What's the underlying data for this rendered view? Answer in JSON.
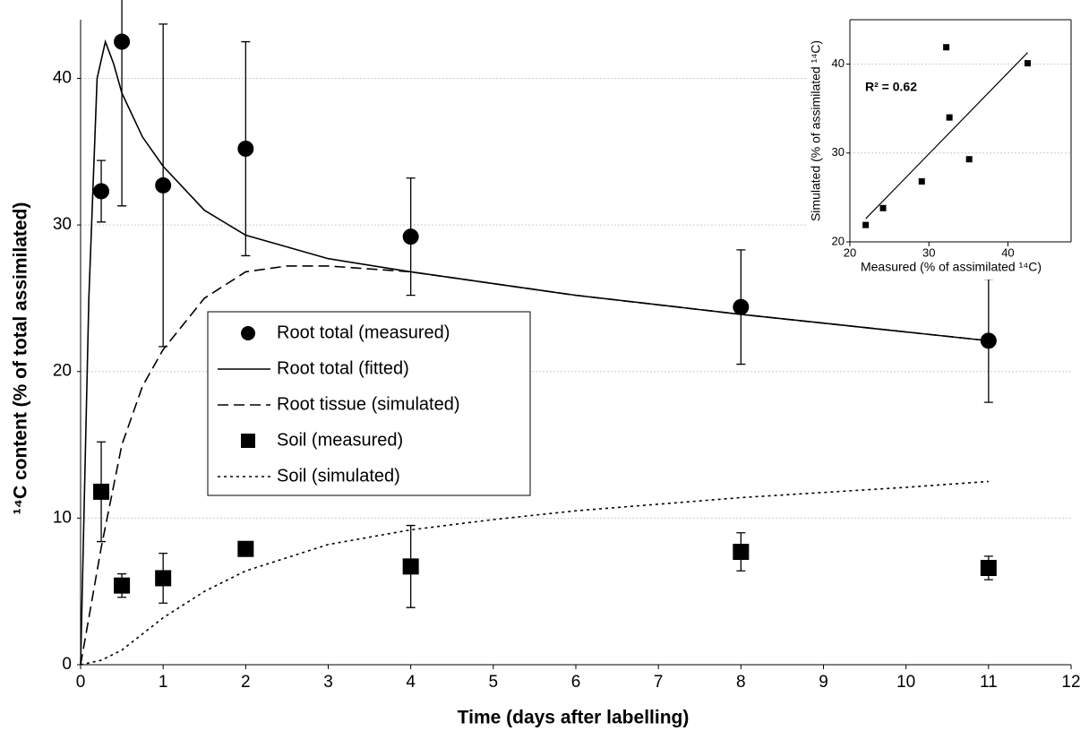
{
  "chart_data": [
    {
      "type": "line",
      "x_label": "Time (days after labelling)",
      "y_label": "¹⁴C content (% of total assimilated)",
      "xlim": [
        0,
        12
      ],
      "ylim": [
        0,
        44
      ],
      "xticks": [
        0,
        1,
        2,
        3,
        4,
        5,
        6,
        7,
        8,
        9,
        10,
        11,
        12
      ],
      "yticks": [
        0,
        10,
        20,
        30,
        40
      ],
      "grid": true,
      "series": [
        {
          "name": "Root total (measured)",
          "color": "#000000",
          "marker": "circle",
          "x": [
            0.25,
            0.5,
            1,
            2,
            4,
            8,
            11
          ],
          "values": [
            32.3,
            42.5,
            32.7,
            35.2,
            29.2,
            24.4,
            22.1
          ],
          "errors": [
            2.1,
            11.2,
            11,
            7.3,
            4,
            3.9,
            4.2
          ]
        },
        {
          "name": "Root total (fitted)",
          "color": "#000000",
          "dash": "solid",
          "x": [
            0,
            0.1,
            0.2,
            0.3,
            0.4,
            0.5,
            0.75,
            1,
            1.5,
            2,
            3,
            4,
            5,
            6,
            8,
            10,
            11
          ],
          "values": [
            0,
            25,
            40,
            42.5,
            41,
            39,
            36,
            34,
            31,
            29.3,
            27.7,
            26.8,
            26,
            25.2,
            23.9,
            22.7,
            22.1
          ]
        },
        {
          "name": "Root tissue (simulated)",
          "color": "#000000",
          "dash": "dashed",
          "x": [
            0,
            0.25,
            0.5,
            0.75,
            1,
            1.5,
            2,
            2.5,
            3,
            4,
            5,
            6,
            8,
            10,
            11
          ],
          "values": [
            0,
            8,
            15,
            19,
            21.5,
            25,
            26.8,
            27.2,
            27.2,
            26.8,
            26,
            25.2,
            23.9,
            22.7,
            22.1
          ]
        },
        {
          "name": "Soil (measured)",
          "color": "#000000",
          "marker": "square",
          "x": [
            0.25,
            0.5,
            1,
            2,
            4,
            8,
            11
          ],
          "values": [
            11.8,
            5.4,
            5.9,
            7.9,
            6.7,
            7.7,
            6.6
          ],
          "errors": [
            3.4,
            0.8,
            1.7,
            0.3,
            2.8,
            1.3,
            0.8
          ]
        },
        {
          "name": "Soil (simulated)",
          "color": "#000000",
          "dash": "dotted",
          "x": [
            0,
            0.25,
            0.5,
            1,
            1.5,
            2,
            3,
            4,
            5,
            6,
            8,
            10,
            11
          ],
          "values": [
            0,
            0.3,
            1,
            3.2,
            5,
            6.4,
            8.2,
            9.2,
            9.9,
            10.5,
            11.4,
            12.1,
            12.5
          ]
        }
      ]
    },
    {
      "type": "scatter",
      "x_label": "Measured (% of assimilated ¹⁴C)",
      "y_label": "Simulated (% of assimilated ¹⁴C)",
      "annotation": "R² = 0.62",
      "xlim": [
        20,
        48
      ],
      "ylim": [
        20,
        45
      ],
      "xticks": [
        20,
        30,
        40
      ],
      "yticks": [
        20,
        30,
        40
      ],
      "grid": true,
      "color": "#000000",
      "x": [
        22,
        24.2,
        29.1,
        35.1,
        32.6,
        32.2,
        42.5
      ],
      "values": [
        21.9,
        23.8,
        26.8,
        29.3,
        34,
        41.9,
        40.1
      ],
      "trendline": {
        "x": [
          22,
          42.5
        ],
        "values": [
          22.6,
          41.3
        ]
      }
    }
  ]
}
